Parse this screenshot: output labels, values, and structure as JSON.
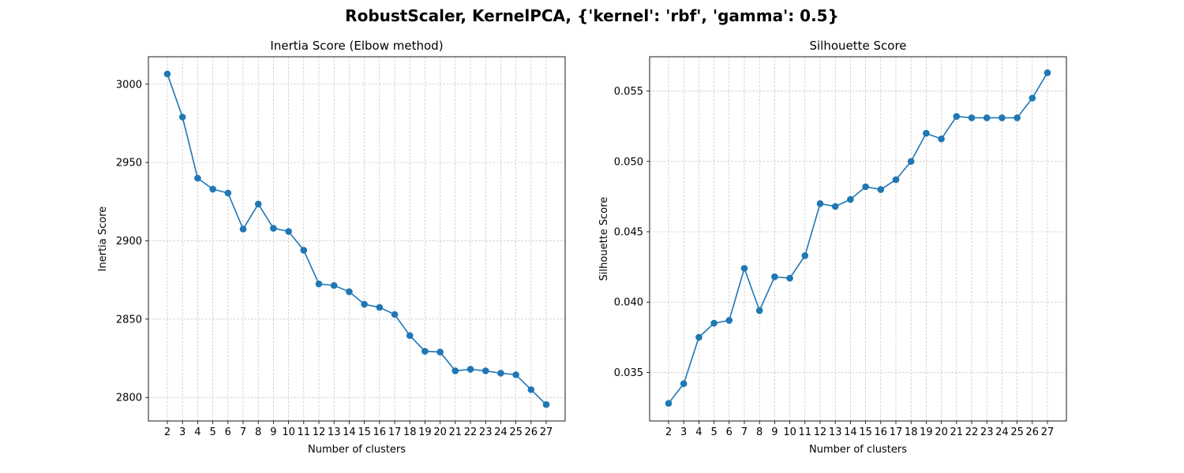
{
  "figure": {
    "title": "RobustScaler, KernelPCA, {'kernel': 'rbf', 'gamma': 0.5}"
  },
  "colors": {
    "series": "#1f77b4",
    "grid": "#b0b0b0",
    "axis": "#000000"
  },
  "chart_data": [
    {
      "type": "line",
      "title": "Inertia Score (Elbow method)",
      "xlabel": "Number of clusters",
      "ylabel": "Inertia Score",
      "x": [
        2,
        3,
        4,
        5,
        6,
        7,
        8,
        9,
        10,
        11,
        12,
        13,
        14,
        15,
        16,
        17,
        18,
        19,
        20,
        21,
        22,
        23,
        24,
        25,
        26,
        27
      ],
      "xticks": [
        "2",
        "3",
        "4",
        "5",
        "6",
        "7",
        "8",
        "9",
        "10",
        "11",
        "12",
        "13",
        "14",
        "15",
        "16",
        "17",
        "18",
        "19",
        "20",
        "21",
        "22",
        "23",
        "24",
        "25",
        "26",
        "27"
      ],
      "values": [
        3006.5,
        2979,
        2940,
        2933,
        2930.5,
        2907.5,
        2923.5,
        2908,
        2906,
        2894,
        2872.5,
        2871.5,
        2867.5,
        2859.5,
        2857.5,
        2853,
        2839.5,
        2829.5,
        2829,
        2817,
        2818,
        2817,
        2815.5,
        2814.5,
        2805,
        2795.5
      ],
      "yticks": [
        2800,
        2850,
        2900,
        2950,
        3000
      ],
      "ytick_labels": [
        "2800",
        "2850",
        "2900",
        "2950",
        "3000"
      ],
      "xlim": [
        0.75,
        28.25
      ],
      "ylim": [
        2785,
        3017.5
      ],
      "grid": true,
      "marker": "circle"
    },
    {
      "type": "line",
      "title": "Silhouette Score",
      "xlabel": "Number of clusters",
      "ylabel": "Silhouette Score",
      "x": [
        2,
        3,
        4,
        5,
        6,
        7,
        8,
        9,
        10,
        11,
        12,
        13,
        14,
        15,
        16,
        17,
        18,
        19,
        20,
        21,
        22,
        23,
        24,
        25,
        26,
        27
      ],
      "xticks": [
        "2",
        "3",
        "4",
        "5",
        "6",
        "7",
        "8",
        "9",
        "10",
        "11",
        "12",
        "13",
        "14",
        "15",
        "16",
        "17",
        "18",
        "19",
        "20",
        "21",
        "22",
        "23",
        "24",
        "25",
        "26",
        "27"
      ],
      "values": [
        0.0328,
        0.0342,
        0.0375,
        0.0385,
        0.0387,
        0.0424,
        0.0394,
        0.0418,
        0.0417,
        0.0433,
        0.047,
        0.0468,
        0.0473,
        0.0482,
        0.048,
        0.0487,
        0.05,
        0.052,
        0.0516,
        0.0532,
        0.0531,
        0.0531,
        0.0531,
        0.0531,
        0.0545,
        0.0563
      ],
      "yticks": [
        0.035,
        0.04,
        0.045,
        0.05,
        0.055
      ],
      "ytick_labels": [
        "0.035",
        "0.040",
        "0.045",
        "0.050",
        "0.055"
      ],
      "xlim": [
        0.75,
        28.25
      ],
      "ylim": [
        0.03155,
        0.05744
      ],
      "grid": true,
      "marker": "circle"
    }
  ]
}
